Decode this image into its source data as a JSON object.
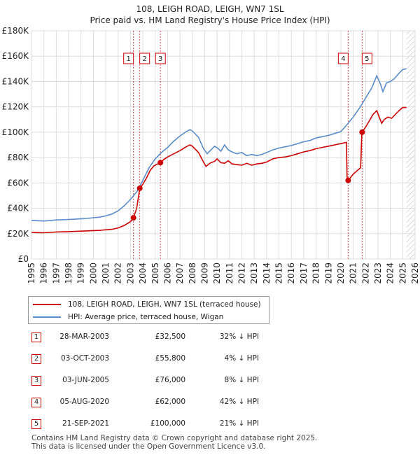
{
  "chart_data": {
    "type": "line",
    "title": "108, LEIGH ROAD, LEIGH, WN7 1SL",
    "subtitle": "Price paid vs. HM Land Registry's House Price Index (HPI)",
    "x_ticks": [
      "1995",
      "1996",
      "1997",
      "1998",
      "1999",
      "2000",
      "2001",
      "2002",
      "2003",
      "2004",
      "2005",
      "2006",
      "2007",
      "2008",
      "2009",
      "2010",
      "2011",
      "2012",
      "2013",
      "2014",
      "2015",
      "2016",
      "2017",
      "2018",
      "2019",
      "2020",
      "2021",
      "2022",
      "2023",
      "2024",
      "2025",
      "2026"
    ],
    "y_ticks": [
      "£0",
      "£20K",
      "£40K",
      "£60K",
      "£80K",
      "£100K",
      "£120K",
      "£140K",
      "£160K",
      "£180K"
    ],
    "xlim": [
      1995,
      2026
    ],
    "ylim": [
      0,
      180000
    ],
    "grid": true,
    "colors": {
      "property": "#cc0000",
      "hpi": "#5b8ccc",
      "sale_line": "#cc0000",
      "forecast_hatch": "#aaaaaa"
    },
    "forecast_start": 2025.3,
    "series": [
      {
        "name": "108, LEIGH ROAD, LEIGH, WN7 1SL (terraced house)",
        "key": "property",
        "points": [
          [
            1995.0,
            21000
          ],
          [
            1995.5,
            20800
          ],
          [
            1996.0,
            20700
          ],
          [
            1996.5,
            21000
          ],
          [
            1997.0,
            21300
          ],
          [
            1997.5,
            21400
          ],
          [
            1998.0,
            21600
          ],
          [
            1998.5,
            21800
          ],
          [
            1999.0,
            22000
          ],
          [
            1999.5,
            22200
          ],
          [
            2000.0,
            22400
          ],
          [
            2000.5,
            22600
          ],
          [
            2001.0,
            23000
          ],
          [
            2001.5,
            23400
          ],
          [
            2002.0,
            24500
          ],
          [
            2002.5,
            26500
          ],
          [
            2003.0,
            29500
          ],
          [
            2003.24,
            32500
          ],
          [
            2003.5,
            40000
          ],
          [
            2003.75,
            55800
          ],
          [
            2004.0,
            59000
          ],
          [
            2004.3,
            64000
          ],
          [
            2004.6,
            70000
          ],
          [
            2004.9,
            73500
          ],
          [
            2005.2,
            75000
          ],
          [
            2005.42,
            76000
          ],
          [
            2005.7,
            78500
          ],
          [
            2006.0,
            80500
          ],
          [
            2006.5,
            83000
          ],
          [
            2007.0,
            85500
          ],
          [
            2007.5,
            88500
          ],
          [
            2007.8,
            90000
          ],
          [
            2008.0,
            89000
          ],
          [
            2008.5,
            84000
          ],
          [
            2008.9,
            76500
          ],
          [
            2009.1,
            73000
          ],
          [
            2009.4,
            75500
          ],
          [
            2009.8,
            77000
          ],
          [
            2010.0,
            79000
          ],
          [
            2010.3,
            76000
          ],
          [
            2010.6,
            75500
          ],
          [
            2010.9,
            77500
          ],
          [
            2011.2,
            75000
          ],
          [
            2011.6,
            74500
          ],
          [
            2012.0,
            74000
          ],
          [
            2012.4,
            75500
          ],
          [
            2012.8,
            74000
          ],
          [
            2013.2,
            75000
          ],
          [
            2013.6,
            75500
          ],
          [
            2014.0,
            76500
          ],
          [
            2014.5,
            79000
          ],
          [
            2015.0,
            80000
          ],
          [
            2015.5,
            80500
          ],
          [
            2016.0,
            81500
          ],
          [
            2016.5,
            83000
          ],
          [
            2017.0,
            84500
          ],
          [
            2017.5,
            85500
          ],
          [
            2018.0,
            87000
          ],
          [
            2018.5,
            88000
          ],
          [
            2019.0,
            89000
          ],
          [
            2019.5,
            90000
          ],
          [
            2020.0,
            91000
          ],
          [
            2020.45,
            92000
          ],
          [
            2020.5,
            65000
          ],
          [
            2020.59,
            62000
          ],
          [
            2020.8,
            64500
          ],
          [
            2021.0,
            67000
          ],
          [
            2021.3,
            69500
          ],
          [
            2021.6,
            72000
          ],
          [
            2021.7,
            100000
          ],
          [
            2022.0,
            104000
          ],
          [
            2022.3,
            109000
          ],
          [
            2022.6,
            114000
          ],
          [
            2022.9,
            117000
          ],
          [
            2023.1,
            112000
          ],
          [
            2023.3,
            107000
          ],
          [
            2023.5,
            110000
          ],
          [
            2023.8,
            112000
          ],
          [
            2024.1,
            111000
          ],
          [
            2024.4,
            114000
          ],
          [
            2024.7,
            117000
          ],
          [
            2025.0,
            119500
          ],
          [
            2025.3,
            119500
          ]
        ]
      },
      {
        "name": "HPI: Average price, terraced house, Wigan",
        "key": "hpi",
        "points": [
          [
            1995.0,
            30500
          ],
          [
            1995.5,
            30200
          ],
          [
            1996.0,
            30000
          ],
          [
            1996.5,
            30300
          ],
          [
            1997.0,
            30800
          ],
          [
            1997.5,
            31000
          ],
          [
            1998.0,
            31200
          ],
          [
            1998.5,
            31400
          ],
          [
            1999.0,
            31700
          ],
          [
            1999.5,
            32000
          ],
          [
            2000.0,
            32500
          ],
          [
            2000.5,
            33000
          ],
          [
            2001.0,
            34000
          ],
          [
            2001.5,
            35500
          ],
          [
            2002.0,
            38000
          ],
          [
            2002.5,
            42000
          ],
          [
            2003.0,
            47000
          ],
          [
            2003.5,
            53000
          ],
          [
            2004.0,
            62000
          ],
          [
            2004.5,
            72000
          ],
          [
            2005.0,
            79000
          ],
          [
            2005.5,
            84000
          ],
          [
            2006.0,
            88000
          ],
          [
            2006.5,
            93000
          ],
          [
            2007.0,
            97000
          ],
          [
            2007.5,
            100500
          ],
          [
            2007.8,
            102000
          ],
          [
            2008.0,
            101000
          ],
          [
            2008.5,
            96000
          ],
          [
            2008.9,
            87000
          ],
          [
            2009.2,
            83000
          ],
          [
            2009.5,
            86000
          ],
          [
            2009.8,
            89000
          ],
          [
            2010.1,
            87000
          ],
          [
            2010.3,
            85000
          ],
          [
            2010.6,
            90000
          ],
          [
            2010.9,
            86000
          ],
          [
            2011.2,
            84500
          ],
          [
            2011.6,
            83000
          ],
          [
            2012.0,
            84000
          ],
          [
            2012.4,
            81500
          ],
          [
            2012.8,
            82500
          ],
          [
            2013.2,
            81500
          ],
          [
            2013.6,
            82500
          ],
          [
            2014.0,
            84000
          ],
          [
            2014.5,
            86000
          ],
          [
            2015.0,
            87500
          ],
          [
            2015.5,
            88500
          ],
          [
            2016.0,
            89500
          ],
          [
            2016.5,
            91000
          ],
          [
            2017.0,
            92500
          ],
          [
            2017.5,
            93500
          ],
          [
            2018.0,
            95500
          ],
          [
            2018.5,
            96500
          ],
          [
            2019.0,
            97500
          ],
          [
            2019.5,
            99000
          ],
          [
            2020.0,
            100500
          ],
          [
            2020.5,
            106000
          ],
          [
            2021.0,
            112000
          ],
          [
            2021.5,
            119000
          ],
          [
            2022.0,
            127000
          ],
          [
            2022.5,
            135000
          ],
          [
            2022.9,
            144500
          ],
          [
            2023.2,
            138000
          ],
          [
            2023.4,
            132000
          ],
          [
            2023.7,
            139000
          ],
          [
            2024.0,
            140000
          ],
          [
            2024.3,
            142000
          ],
          [
            2024.7,
            146500
          ],
          [
            2025.0,
            149500
          ],
          [
            2025.3,
            150000
          ]
        ]
      }
    ],
    "sales": [
      {
        "n": "1",
        "x": 2003.24,
        "y": 32500
      },
      {
        "n": "2",
        "x": 2003.75,
        "y": 55800
      },
      {
        "n": "3",
        "x": 2005.42,
        "y": 76000
      },
      {
        "n": "4",
        "x": 2020.59,
        "y": 62000
      },
      {
        "n": "5",
        "x": 2021.72,
        "y": 100000
      }
    ]
  },
  "legend": {
    "property_label": "108, LEIGH ROAD, LEIGH, WN7 1SL (terraced house)",
    "hpi_label": "HPI: Average price, terraced house, Wigan"
  },
  "transactions": [
    {
      "n": "1",
      "date": "28-MAR-2003",
      "price": "£32,500",
      "hpi": "32% ↓ HPI"
    },
    {
      "n": "2",
      "date": "03-OCT-2003",
      "price": "£55,800",
      "hpi": "4% ↓ HPI"
    },
    {
      "n": "3",
      "date": "03-JUN-2005",
      "price": "£76,000",
      "hpi": "8% ↓ HPI"
    },
    {
      "n": "4",
      "date": "05-AUG-2020",
      "price": "£62,000",
      "hpi": "42% ↓ HPI"
    },
    {
      "n": "5",
      "date": "21-SEP-2021",
      "price": "£100,000",
      "hpi": "21% ↓ HPI"
    }
  ],
  "footer": {
    "line1": "Contains HM Land Registry data © Crown copyright and database right 2025.",
    "line2": "This data is licensed under the Open Government Licence v3.0."
  }
}
